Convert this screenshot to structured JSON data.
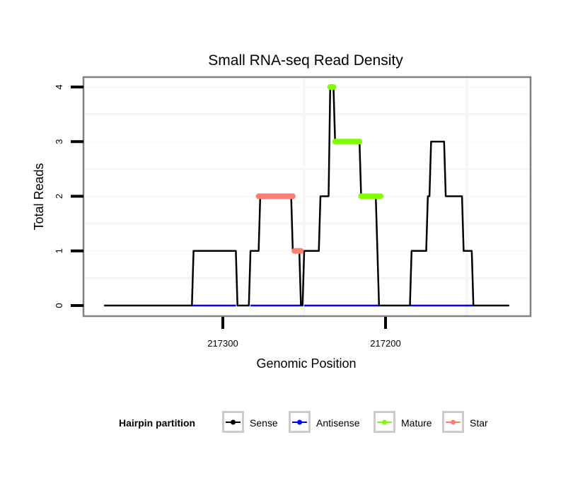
{
  "chart_data": {
    "type": "line",
    "title": "Small RNA-seq Read Density",
    "xlabel": "Genomic Position",
    "ylabel": "Total Reads",
    "x_reversed": true,
    "xlim": [
      217373,
      217124
    ],
    "ylim": [
      -0.15,
      4.2
    ],
    "x_ticks": [
      217300,
      217200
    ],
    "x_tick_labels": [
      "217300",
      "217200"
    ],
    "y_ticks": [
      0,
      1,
      2,
      3,
      4
    ],
    "y_tick_labels": [
      "0",
      "1",
      "2",
      "3",
      "4"
    ],
    "grid": true,
    "legend": {
      "title": "Hairpin partition",
      "placement": "bottom",
      "entries": [
        {
          "name": "Sense",
          "color": "#000000"
        },
        {
          "name": "Antisense",
          "color": "#0000ff"
        },
        {
          "name": "Mature",
          "color": "#7fff00"
        },
        {
          "name": "Star",
          "color": "#fa8072"
        }
      ]
    },
    "series": [
      {
        "name": "Sense",
        "color": "#000000",
        "x": [
          217373,
          217319,
          217318,
          217292,
          217291,
          217284,
          217283,
          217278,
          217277,
          217258,
          217257,
          217253,
          217252,
          217251,
          217250,
          217241,
          217240,
          217235,
          217234,
          217232,
          217231,
          217216,
          217215,
          217206,
          217204,
          217185,
          217184,
          217175,
          217174,
          217173,
          217172,
          217164,
          217163,
          217153,
          217152,
          217147,
          217146,
          217124
        ],
        "y": [
          0,
          0,
          1,
          1,
          0,
          0,
          1,
          1,
          2,
          2,
          1,
          1,
          0,
          0,
          1,
          1,
          2,
          2,
          4,
          4,
          3,
          3,
          2,
          2,
          0,
          0,
          1,
          1,
          2,
          2,
          3,
          3,
          2,
          2,
          1,
          1,
          0,
          0
        ]
      },
      {
        "name": "Antisense",
        "color": "#0000ff",
        "segments": [
          [
            217319,
            217292
          ],
          [
            217283,
            217252
          ],
          [
            217250,
            217204
          ],
          [
            217185,
            217146
          ]
        ],
        "y": 0
      },
      {
        "name": "Mature",
        "color": "#7fff00",
        "segments": [
          {
            "x": [
              217234,
              217232
            ],
            "y": 4
          },
          {
            "x": [
              217231,
              217216
            ],
            "y": 3
          },
          {
            "x": [
              217215,
              217203
            ],
            "y": 2
          }
        ]
      },
      {
        "name": "Star",
        "color": "#fa8072",
        "segments": [
          {
            "x": [
              217278,
              217257
            ],
            "y": 2
          },
          {
            "x": [
              217256,
              217252
            ],
            "y": 1
          }
        ]
      }
    ]
  }
}
